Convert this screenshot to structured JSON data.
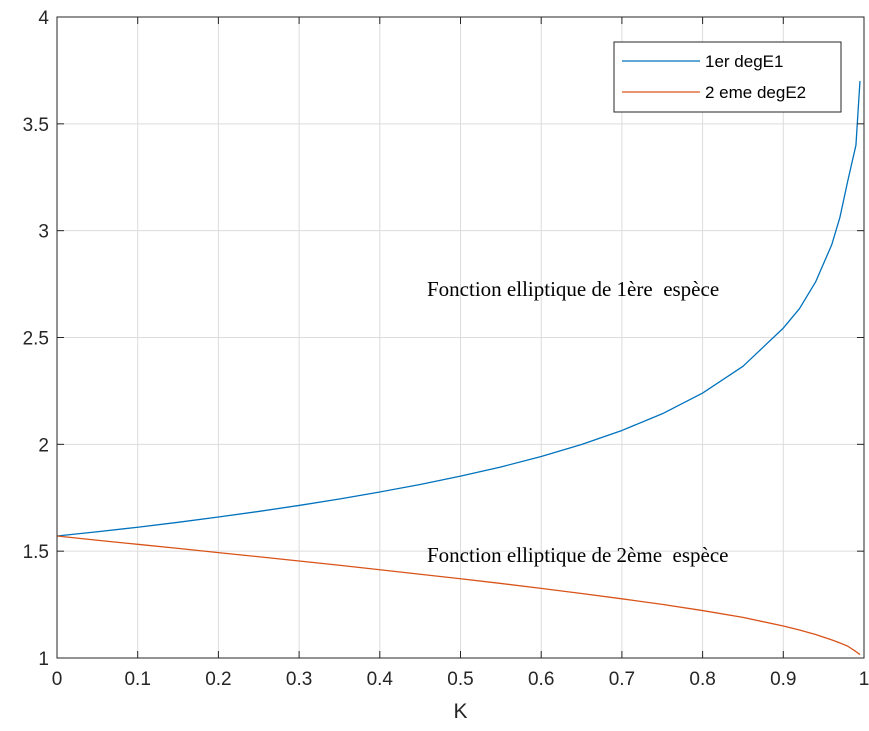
{
  "chart_data": {
    "type": "line",
    "title": "",
    "xlabel": "K",
    "ylabel": "",
    "xlim": [
      0,
      1
    ],
    "ylim": [
      1,
      4
    ],
    "grid": true,
    "legend_position": "top-right",
    "x_ticks": [
      "0",
      "0.1",
      "0.2",
      "0.3",
      "0.4",
      "0.5",
      "0.6",
      "0.7",
      "0.8",
      "0.9",
      "1"
    ],
    "y_ticks": [
      "1",
      "1.5",
      "2",
      "2.5",
      "3",
      "3.5",
      "4"
    ],
    "x": [
      0,
      0.05,
      0.1,
      0.15,
      0.2,
      0.25,
      0.3,
      0.35,
      0.4,
      0.45,
      0.5,
      0.55,
      0.6,
      0.65,
      0.7,
      0.75,
      0.8,
      0.85,
      0.9,
      0.92,
      0.94,
      0.96,
      0.97,
      0.98,
      0.99,
      0.995
    ],
    "series": [
      {
        "name": "1er degE1",
        "color": "#0072bd",
        "values": [
          1.571,
          1.591,
          1.612,
          1.635,
          1.66,
          1.686,
          1.714,
          1.744,
          1.777,
          1.812,
          1.851,
          1.894,
          1.943,
          1.999,
          2.065,
          2.143,
          2.24,
          2.365,
          2.544,
          2.635,
          2.76,
          2.934,
          3.06,
          3.235,
          3.4,
          3.7
        ]
      },
      {
        "name": "2 eme degE2",
        "color": "#d95319",
        "values": [
          1.571,
          1.551,
          1.532,
          1.513,
          1.493,
          1.474,
          1.454,
          1.434,
          1.413,
          1.392,
          1.371,
          1.349,
          1.326,
          1.302,
          1.277,
          1.251,
          1.222,
          1.19,
          1.15,
          1.131,
          1.11,
          1.085,
          1.071,
          1.055,
          1.03,
          1.016
        ]
      }
    ],
    "annotations": [
      "Fonction elliptique de 1ère  espèce",
      "Fonction elliptique de 2ème  espèce"
    ]
  }
}
